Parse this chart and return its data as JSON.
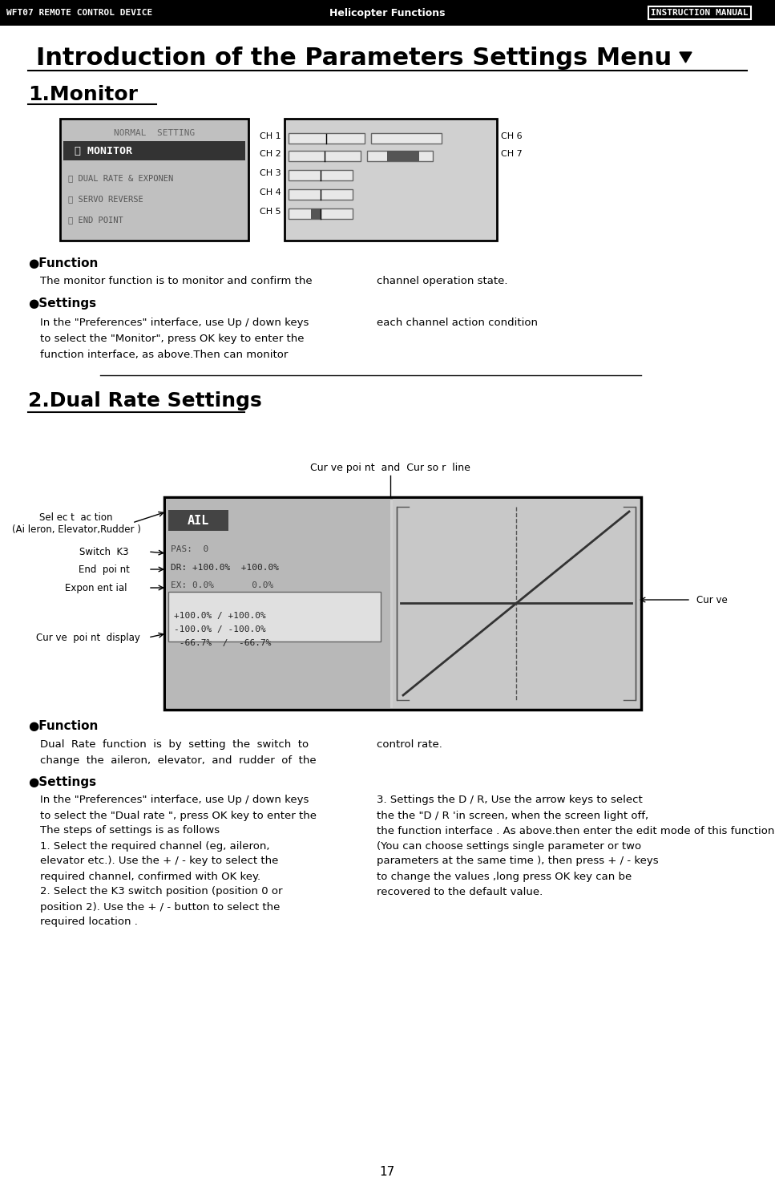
{
  "bg_color": "#ffffff",
  "header_bg": "#000000",
  "header_text_left": "WFT07 REMOTE CONTROL DEVICE",
  "header_text_center": "Helicopter Functions",
  "header_text_right": "INSTRUCTION MANUAL",
  "title": "Introduction of the Parameters Settings Menu",
  "section1_title": "1.Monitor",
  "section2_title": "2.Dual Rate Settings",
  "bullet": "●",
  "function_label": "Function",
  "settings_label": "Settings",
  "monitor_func_text1": "The monitor function is to monitor and confirm the",
  "monitor_func_text2": "channel operation state.",
  "monitor_settings_text1": "In the \"Preferences\" interface, use Up / down keys",
  "monitor_settings_text2": "each channel action condition",
  "monitor_settings_text3": "to select the \"Monitor\", press OK key to enter the",
  "monitor_settings_text4": "function interface, as above.Then can monitor",
  "dr_func_text1": "Dual  Rate  function  is  by  setting  the  switch  to",
  "dr_func_text2": "control rate.",
  "dr_func_text3": "change  the  aileron,  elevator,  and  rudder  of  the",
  "dr_settings_text1": "In the \"Preferences\" interface, use Up / down keys",
  "dr_settings_text2": "3. Settings the D / R, Use the arrow keys to select",
  "dr_settings_text3": "to select the \"Dual rate \", press OK key to enter the",
  "dr_settings_text4": "the the \"D / R 'in screen, when the screen light off,",
  "dr_settings_text5": "the function interface . As above.then enter the edit mode of this function.",
  "dr_settings_text6": "(You can choose settings single parameter or two",
  "dr_settings_text7": "The steps of settings is as follows",
  "dr_settings_text8": "parameters at the same time ), then press + / - keys",
  "dr_settings_text9": "1. Select the required channel (eg, aileron,",
  "dr_settings_text10": "to change the values ,long press OK key can be",
  "dr_settings_text11": "elevator etc.). Use the + / - key to select the",
  "dr_settings_text12": "recovered to the default value.",
  "dr_settings_text13": "required channel, confirmed with OK key.",
  "dr_settings_text14": "2. Select the K3 switch position (position 0 or",
  "dr_settings_text15": "position 2). Use the + / - button to select the",
  "dr_settings_text16": "required location .",
  "page_number": "17",
  "curve_label": "Cur ve poi nt  and  Cur so r  line",
  "select_action_label": "Sel ec t  ac tion",
  "select_action_label2": "(Ai leron, Elevator,Rudder )",
  "switch_k3_label": "Switch  K3",
  "end_point_label": "End  poi nt",
  "exponential_label": "Expon ent ial",
  "curve_point_display_label": "Cur ve  poi nt  display",
  "curve_right_label": "Cur ve",
  "ch_labels_left": [
    "CH 1",
    "CH 2",
    "CH 3",
    "CH 4",
    "CH 5"
  ],
  "ch_labels_right": [
    "CH 6",
    "CH 7"
  ]
}
